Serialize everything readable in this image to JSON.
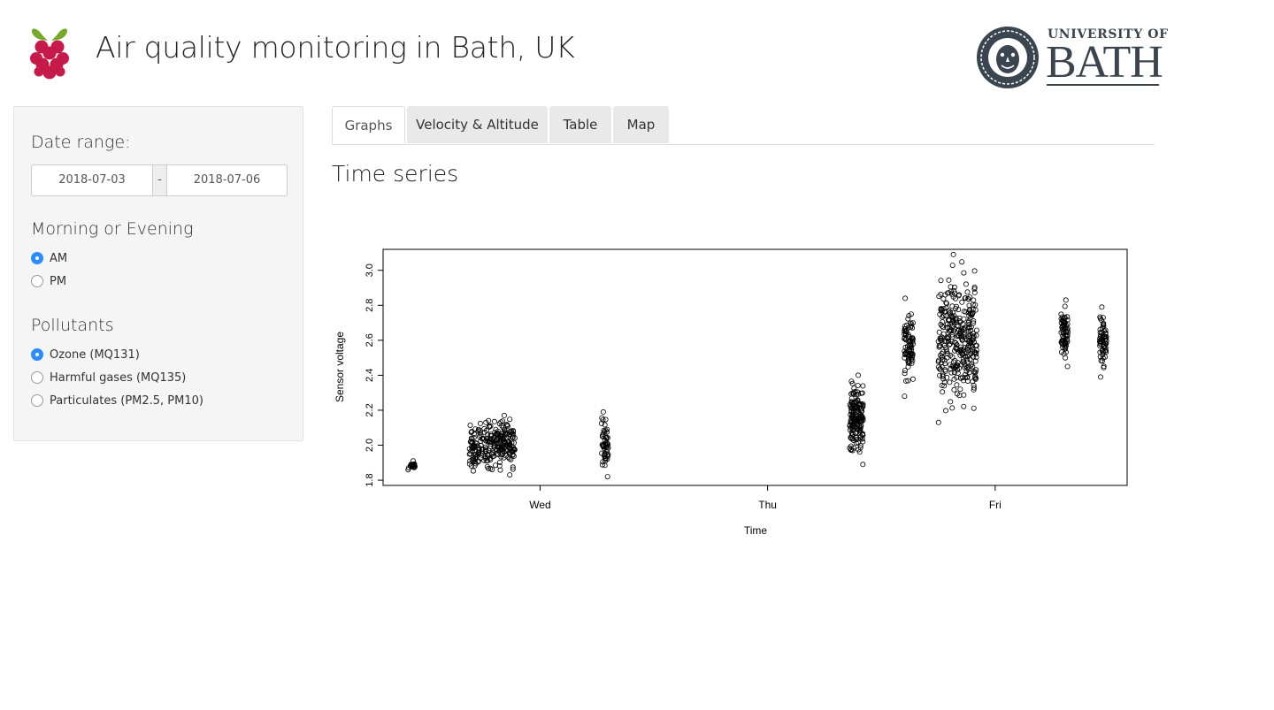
{
  "header": {
    "title": "Air quality monitoring in Bath, UK",
    "university_of": "UNIVERSITY OF",
    "university_name": "BATH",
    "rpi_icon": "raspberry-pi-logo-icon",
    "uni_icon": "university-of-bath-seal-icon"
  },
  "sidebar": {
    "date_range": {
      "label": "Date range:",
      "start": "2018-07-03",
      "separator": "-",
      "end": "2018-07-06"
    },
    "time_of_day": {
      "label": "Morning or Evening",
      "options": [
        {
          "label": "AM",
          "selected": true
        },
        {
          "label": "PM",
          "selected": false
        }
      ]
    },
    "pollutants": {
      "label": "Pollutants",
      "options": [
        {
          "label": "Ozone (MQ131)",
          "selected": true
        },
        {
          "label": "Harmful gases (MQ135)",
          "selected": false
        },
        {
          "label": "Particulates (PM2.5, PM10)",
          "selected": false
        }
      ]
    }
  },
  "tabs": [
    {
      "label": "Graphs",
      "active": true
    },
    {
      "label": "Velocity & Altitude",
      "active": false
    },
    {
      "label": "Table",
      "active": false
    },
    {
      "label": "Map",
      "active": false
    }
  ],
  "main": {
    "section_title": "Time series"
  },
  "colors": {
    "accent": "#2b8cff",
    "rpi_red": "#c51a4a",
    "rpi_green": "#75a928",
    "bath_gray": "#3a4550"
  },
  "chart_data": {
    "type": "scatter",
    "title": "",
    "xlabel": "Time",
    "ylabel": "Sensor voltage",
    "x_tick_labels": [
      {
        "label": "Wed",
        "value": 1.0
      },
      {
        "label": "Thu",
        "value": 2.0
      },
      {
        "label": "Fri",
        "value": 3.0
      }
    ],
    "y_ticks": [
      "1.8",
      "2.0",
      "2.2",
      "2.4",
      "2.6",
      "2.8",
      "3.0"
    ],
    "xlim": [
      0.31,
      3.58
    ],
    "ylim": [
      1.77,
      3.12
    ],
    "grid": false,
    "marker": "open-circle",
    "clusters": [
      {
        "x": [
          0.42,
          0.45
        ],
        "y": [
          1.86,
          1.91
        ],
        "n": 24
      },
      {
        "x": [
          0.69,
          0.89
        ],
        "y": [
          1.83,
          2.17
        ],
        "n": 260
      },
      {
        "x": [
          1.27,
          1.3
        ],
        "y": [
          1.82,
          2.19
        ],
        "n": 55
      },
      {
        "x": [
          2.36,
          2.42
        ],
        "y": [
          1.89,
          2.4
        ],
        "n": 170
      },
      {
        "x": [
          2.6,
          2.64
        ],
        "y": [
          2.28,
          2.84
        ],
        "n": 90
      },
      {
        "x": [
          2.75,
          2.92
        ],
        "y": [
          2.13,
          3.09
        ],
        "n": 340
      },
      {
        "x": [
          3.29,
          3.32
        ],
        "y": [
          2.45,
          2.83
        ],
        "n": 75
      },
      {
        "x": [
          3.46,
          3.49
        ],
        "y": [
          2.39,
          2.79
        ],
        "n": 70
      }
    ]
  }
}
